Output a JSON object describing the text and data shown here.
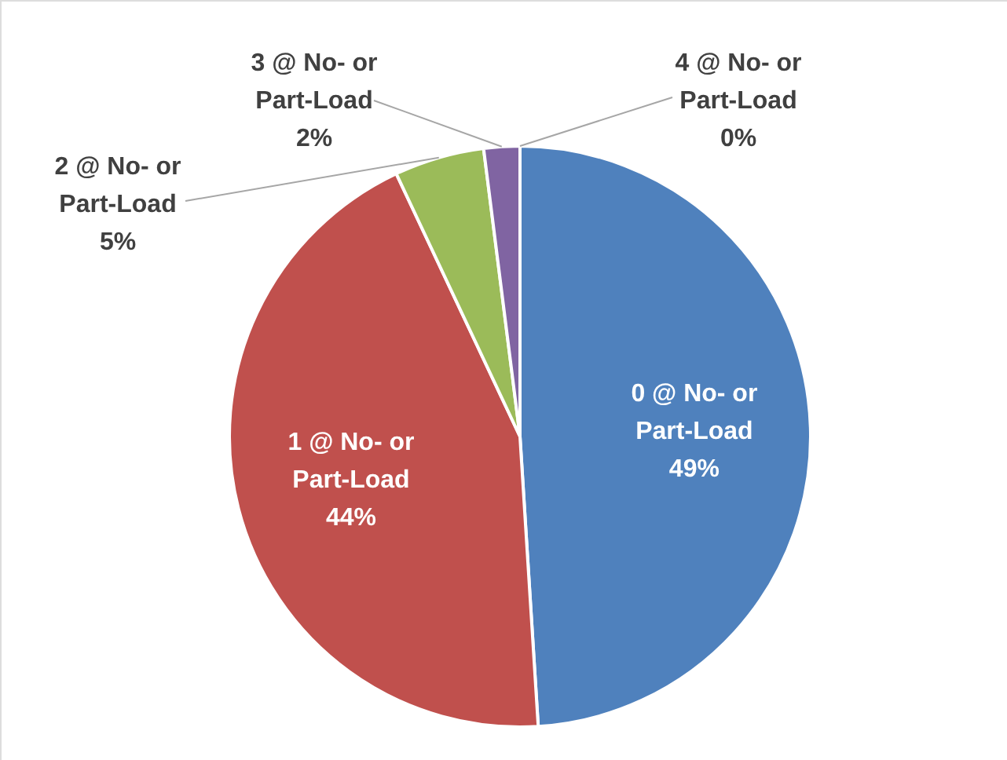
{
  "chart_data": {
    "type": "pie",
    "categories": [
      "0 @ No- or Part-Load",
      "1 @ No- or Part-Load",
      "2 @ No- or Part-Load",
      "3 @ No- or Part-Load",
      "4 @ No- or Part-Load"
    ],
    "values": [
      49,
      44,
      5,
      2,
      0
    ],
    "value_labels": [
      "49%",
      "44%",
      "5%",
      "2%",
      "0%"
    ],
    "colors": [
      "#4f81bd",
      "#c0504d",
      "#9bbb59",
      "#8064a2",
      "#4bacc6"
    ]
  }
}
